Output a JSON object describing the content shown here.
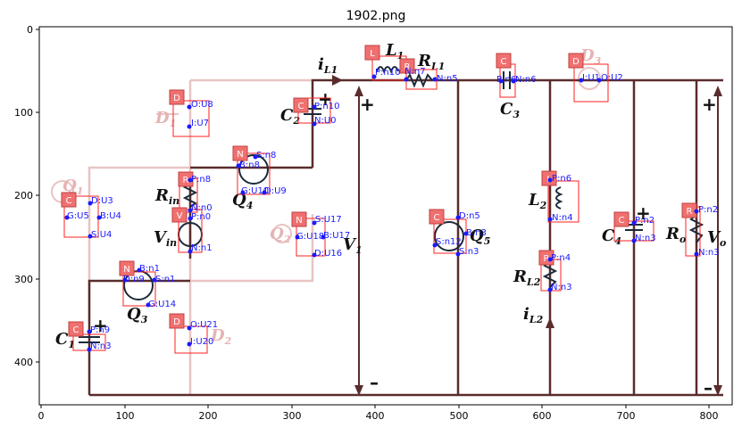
{
  "title": "1902.png",
  "x_ticks": [
    "0",
    "100",
    "200",
    "300",
    "400",
    "500",
    "600",
    "700",
    "800"
  ],
  "y_ticks": [
    "0",
    "100",
    "200",
    "300",
    "400"
  ],
  "component_labels": {
    "L1": "L",
    "L1_sub": "1",
    "R_L1": "R",
    "R_L1_sub": "L1",
    "C3": "C",
    "C3_sub": "3",
    "D3": "D",
    "D3_sub": "3",
    "iL1": "i",
    "iL1_sub": "L1",
    "C2": "C",
    "C2_sub": "2",
    "D1": "D",
    "D1_sub": "1",
    "Q4": "Q",
    "Q4_sub": "4",
    "Rin": "R",
    "Rin_sub": "in",
    "Vin": "V",
    "Vin_sub": "in",
    "Q1": "Q",
    "Q1_sub": "1",
    "V1": "V",
    "V1_sub": "1",
    "Q2": "Q",
    "Q2_sub": "2",
    "Q5": "Q",
    "Q5_sub": "5",
    "L2": "L",
    "L2_sub": "2",
    "C4": "C",
    "C4_sub": "4",
    "Ro": "R",
    "Ro_sub": "o",
    "Vo": "V",
    "Vo_sub": "o",
    "RL2": "R",
    "RL2_sub": "L2",
    "iL2": "i",
    "iL2_sub": "L2",
    "Q3": "Q",
    "Q3_sub": "3",
    "C1": "C",
    "C1_sub": "1",
    "D2": "D",
    "D2_sub": "2",
    "plus": "+",
    "minus": "–"
  },
  "tags": {
    "t_L1": "L",
    "t_RL1": "R",
    "t_C3": "C",
    "t_D3": "D",
    "t_C2": "C",
    "t_D1": "D",
    "t_Q4": "N",
    "t_Rin": "R",
    "t_Vin": "V",
    "t_Q1": "C",
    "t_Q2": "N",
    "t_Q5": "C",
    "t_L2": "L",
    "t_C4": "C",
    "t_Ro": "R",
    "t_RL2": "R",
    "t_Q3": "N",
    "t_C1": "C",
    "t_D2": "D"
  },
  "annotations": {
    "a1": "P:n10",
    "a2": "N:n7",
    "a3": "N:n5",
    "a4": "P:n6",
    "a5": "N:n6",
    "a6": "I:U1",
    "a7": "O:U2",
    "a8": "P:n10",
    "a9": "N:U0",
    "a10": "O:U8",
    "a11": "I:U7",
    "a12": "S:n8",
    "a13": "B:n8",
    "a14": "G:U10",
    "a15": "D:U9",
    "a16": "P:n8",
    "a17": "N:n0",
    "a18": "P:n0",
    "a19": "N:n1",
    "a20": "D:U3",
    "a21": "G:U5",
    "a22": "B:U4",
    "a23": "S:U4",
    "a24": "S:U17",
    "a25": "G:U18",
    "a26": "B:U17",
    "a27": "D:U16",
    "a28": "D:n5",
    "a29": "S:n12",
    "a30": "B:n3",
    "a31": "S:n3",
    "a32": "P:n6",
    "a33": "N:n4",
    "a34": "P:n2",
    "a35": "N:n3",
    "a36": "P:n2",
    "a37": "N:n3",
    "a38": "P:n4",
    "a39": "N:n3",
    "a40": "B:n1",
    "a41": "D:n9",
    "a42": "S:n1",
    "a43": "G:U14",
    "a44": "P:n9",
    "a45": "N:n3",
    "a46": "O:U21",
    "a47": "I:U20"
  }
}
